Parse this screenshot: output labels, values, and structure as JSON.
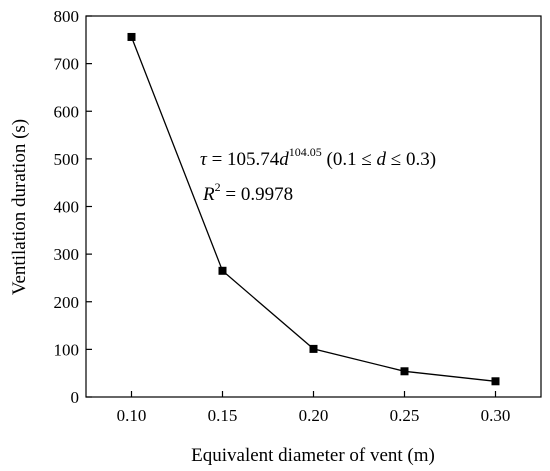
{
  "chart_data": {
    "type": "line",
    "title": "",
    "xlabel": "Equivalent diameter of vent (m)",
    "ylabel": "Ventilation duration (s)",
    "xlim": [
      0.075,
      0.325
    ],
    "ylim": [
      0,
      800
    ],
    "x_ticks": [
      0.1,
      0.15,
      0.2,
      0.25,
      0.3
    ],
    "x_tick_labels": [
      "0.10",
      "0.15",
      "0.20",
      "0.25",
      "0.30"
    ],
    "y_ticks": [
      0,
      100,
      200,
      300,
      400,
      500,
      600,
      700,
      800
    ],
    "y_tick_labels": [
      "0",
      "100",
      "200",
      "300",
      "400",
      "500",
      "600",
      "700",
      "800"
    ],
    "grid": false,
    "marker": "square",
    "line_color": "#000000",
    "series": [
      {
        "x": [
          0.1,
          0.15,
          0.2,
          0.25,
          0.3
        ],
        "y": [
          756,
          265,
          101,
          54,
          33
        ]
      }
    ],
    "annotations": {
      "line1": {
        "tau": "τ",
        "eq": " = 105.74",
        "d": "d",
        "exp": "104.05",
        "range_open": " (0.1 ≤ ",
        "range_d": "d",
        "range_close": " ≤ 0.3)"
      },
      "line2": {
        "r": "R",
        "exp": "2",
        "eq": " = 0.9978"
      }
    }
  }
}
